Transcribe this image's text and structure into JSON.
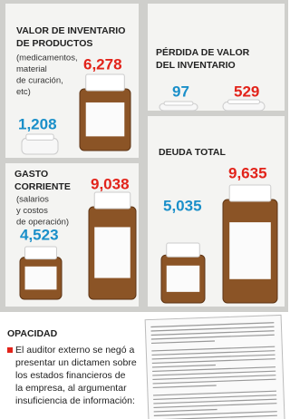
{
  "panels": [
    {
      "title": [
        "VALOR DE INVENTARIO",
        "DE PRODUCTOS"
      ],
      "note": [
        "(medicamentos,",
        "material",
        "de curación,",
        "etc)"
      ],
      "blue_value": "1,208",
      "red_value": "6,278"
    },
    {
      "title": [
        "PÉRDIDA DE VALOR",
        "DEL INVENTARIO"
      ],
      "blue_value": "97",
      "red_value": "529"
    },
    {
      "title": [
        "GASTO",
        "CORRIENTE"
      ],
      "note": [
        "(salarios",
        "y costos",
        "de operación)"
      ],
      "blue_value": "4,523",
      "red_value": "9,038"
    },
    {
      "title": [
        "DEUDA TOTAL"
      ],
      "blue_value": "5,035",
      "red_value": "9,635"
    }
  ],
  "footer": {
    "title": "OPACIDAD",
    "lines": [
      "El auditor externo se negó a",
      "presentar un dictamen sobre",
      "los estados financieros de",
      "la empresa, al argumentar",
      "insuficiencia de información:"
    ]
  }
}
